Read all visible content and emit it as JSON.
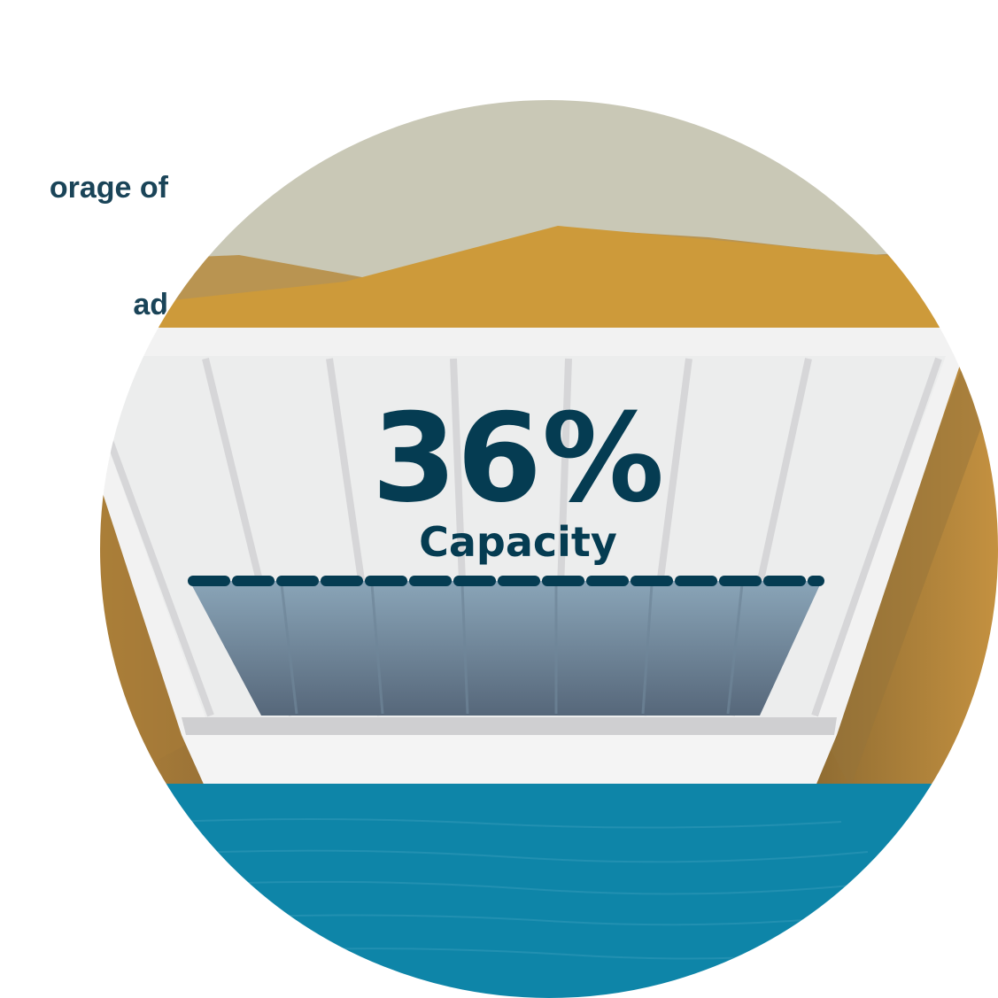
{
  "caption": {
    "line1": "orage of",
    "line2": "ad"
  },
  "reservoir": {
    "percent_label": "36%",
    "label": "Capacity",
    "capacity_fraction": 0.36
  },
  "colors": {
    "sky": "#c9c8b6",
    "hill_near": "#cd9a3a",
    "hill_far": "#b99451",
    "dam_face": "#f2f2f2",
    "water_in_dam": "#7891a5",
    "lake": "#0e85a8",
    "text_dark": "#053c52"
  }
}
